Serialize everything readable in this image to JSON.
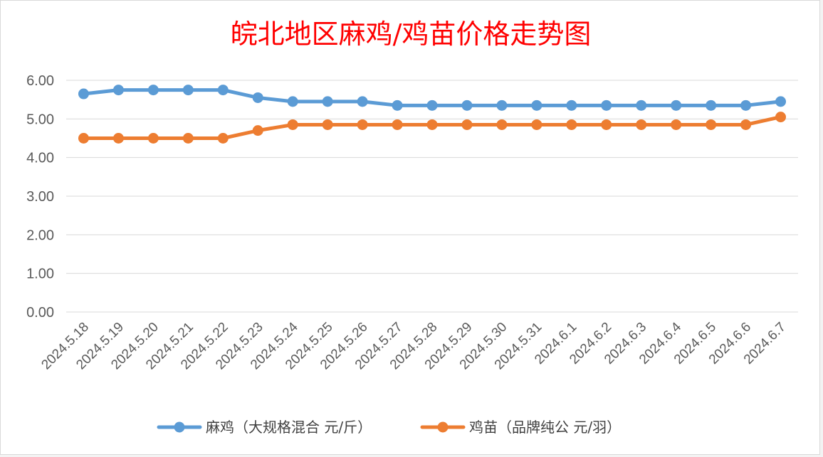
{
  "chart_data": {
    "type": "line",
    "title": "皖北地区麻鸡/鸡苗价格走势图",
    "categories": [
      "2024.5.18",
      "2024.5.19",
      "2024.5.20",
      "2024.5.21",
      "2024.5.22",
      "2024.5.23",
      "2024.5.24",
      "2024.5.25",
      "2024.5.26",
      "2024.5.27",
      "2024.5.28",
      "2024.5.29",
      "2024.5.30",
      "2024.5.31",
      "2024.6.1",
      "2024.6.2",
      "2024.6.3",
      "2024.6.4",
      "2024.6.5",
      "2024.6.6",
      "2024.6.7"
    ],
    "y_ticks": [
      "0.00",
      "1.00",
      "2.00",
      "3.00",
      "4.00",
      "5.00",
      "6.00"
    ],
    "ylim": [
      0,
      6
    ],
    "grid": true,
    "legend_position": "bottom",
    "series": [
      {
        "name": "麻鸡（大规格混合 元/斤）",
        "color": "#5b9bd5",
        "values": [
          5.65,
          5.75,
          5.75,
          5.75,
          5.75,
          5.55,
          5.45,
          5.45,
          5.45,
          5.35,
          5.35,
          5.35,
          5.35,
          5.35,
          5.35,
          5.35,
          5.35,
          5.35,
          5.35,
          5.35,
          5.45
        ]
      },
      {
        "name": "鸡苗（品牌纯公 元/羽）",
        "color": "#ed7d31",
        "values": [
          4.5,
          4.5,
          4.5,
          4.5,
          4.5,
          4.7,
          4.85,
          4.85,
          4.85,
          4.85,
          4.85,
          4.85,
          4.85,
          4.85,
          4.85,
          4.85,
          4.85,
          4.85,
          4.85,
          4.85,
          5.05
        ]
      }
    ]
  }
}
